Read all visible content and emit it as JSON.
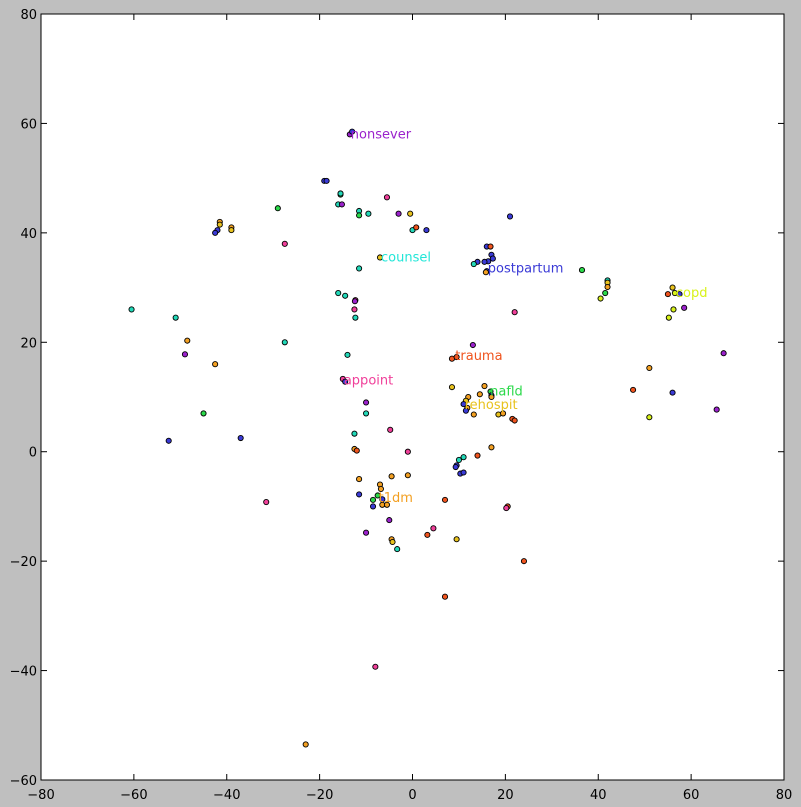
{
  "chart_data": {
    "type": "scatter",
    "title": "",
    "xlabel": "",
    "ylabel": "",
    "xlim": [
      -80,
      80
    ],
    "ylim": [
      -60,
      80
    ],
    "grid": false,
    "x_ticks": [
      "−80",
      "−60",
      "−40",
      "−20",
      "0",
      "20",
      "40",
      "60",
      "80"
    ],
    "y_ticks": [
      "−60",
      "−40",
      "−20",
      "0",
      "20",
      "40",
      "60",
      "80"
    ],
    "annotations": [
      {
        "text": "nonsever",
        "x": -13.5,
        "y": 58,
        "color": "#9b22cc"
      },
      {
        "text": "counsel",
        "x": -7,
        "y": 35.5,
        "color": "#22e6d8"
      },
      {
        "text": "postpartum",
        "x": 16,
        "y": 33.5,
        "color": "#3a3ad6"
      },
      {
        "text": "copd",
        "x": 56.5,
        "y": 29,
        "color": "#d8f21a"
      },
      {
        "text": "trauma",
        "x": 9,
        "y": 17.5,
        "color": "#f0541e"
      },
      {
        "text": "appoint",
        "x": -15,
        "y": 13,
        "color": "#f0409a"
      },
      {
        "text": "nafld",
        "x": 16.5,
        "y": 11,
        "color": "#2bd94a"
      },
      {
        "text": "rehospit",
        "x": 11,
        "y": 8.5,
        "color": "#e8c21e"
      },
      {
        "text": "t1dm",
        "x": -7.5,
        "y": -8.5,
        "color": "#f3a022"
      }
    ],
    "points": [
      {
        "x": -13.5,
        "y": 58,
        "color": "#9b22cc"
      },
      {
        "x": -13,
        "y": 58.5,
        "color": "#3a3ad6"
      },
      {
        "x": -19,
        "y": 49.5,
        "color": "#3a3ad6"
      },
      {
        "x": -18.5,
        "y": 49.5,
        "color": "#3a3ad6"
      },
      {
        "x": -15.5,
        "y": 47,
        "color": "#2bd94a"
      },
      {
        "x": -15.5,
        "y": 47.2,
        "color": "#22d8b8"
      },
      {
        "x": -16,
        "y": 45.2,
        "color": "#22d8b8"
      },
      {
        "x": -15.2,
        "y": 45.2,
        "color": "#9b22cc"
      },
      {
        "x": -5.5,
        "y": 46.5,
        "color": "#f0409a"
      },
      {
        "x": -29,
        "y": 44.5,
        "color": "#2bd94a"
      },
      {
        "x": -41.5,
        "y": 42,
        "color": "#f3a022"
      },
      {
        "x": -41.5,
        "y": 41.5,
        "color": "#e8c21e"
      },
      {
        "x": -42,
        "y": 40.5,
        "color": "#3a3ad6"
      },
      {
        "x": -42.5,
        "y": 40,
        "color": "#3a3ad6"
      },
      {
        "x": -39,
        "y": 41,
        "color": "#f3a022"
      },
      {
        "x": -39,
        "y": 40.5,
        "color": "#e8c21e"
      },
      {
        "x": -11.5,
        "y": 44,
        "color": "#22d8b8"
      },
      {
        "x": -11.5,
        "y": 43.2,
        "color": "#2bd94a"
      },
      {
        "x": -9.5,
        "y": 43.5,
        "color": "#22d8b8"
      },
      {
        "x": -3,
        "y": 43.5,
        "color": "#9b22cc"
      },
      {
        "x": -0.5,
        "y": 43.5,
        "color": "#e8c21e"
      },
      {
        "x": 0,
        "y": 40.5,
        "color": "#22d8b8"
      },
      {
        "x": 0.8,
        "y": 41,
        "color": "#f0541e"
      },
      {
        "x": 3,
        "y": 40.5,
        "color": "#3a3ad6"
      },
      {
        "x": -27.5,
        "y": 38,
        "color": "#f0409a"
      },
      {
        "x": -7,
        "y": 35.5,
        "color": "#e8c21e"
      },
      {
        "x": -11.5,
        "y": 33.5,
        "color": "#22d8b8"
      },
      {
        "x": 21,
        "y": 43,
        "color": "#3a3ad6"
      },
      {
        "x": 16,
        "y": 37.5,
        "color": "#3a3ad6"
      },
      {
        "x": 16.8,
        "y": 37.5,
        "color": "#f0541e"
      },
      {
        "x": 17,
        "y": 36,
        "color": "#3a3ad6"
      },
      {
        "x": 17.3,
        "y": 35.3,
        "color": "#3a3ad6"
      },
      {
        "x": 16.3,
        "y": 34.8,
        "color": "#3a3ad6"
      },
      {
        "x": 15.5,
        "y": 34.7,
        "color": "#3a3ad6"
      },
      {
        "x": 14,
        "y": 34.7,
        "color": "#3a3ad6"
      },
      {
        "x": 13.2,
        "y": 34.3,
        "color": "#22d8b8"
      },
      {
        "x": 16,
        "y": 33,
        "color": "#3a3ad6"
      },
      {
        "x": 15.8,
        "y": 32.8,
        "color": "#f3a022"
      },
      {
        "x": 36.5,
        "y": 33.2,
        "color": "#2bd94a"
      },
      {
        "x": 42,
        "y": 31.3,
        "color": "#22d8b8"
      },
      {
        "x": 42,
        "y": 30.9,
        "color": "#e8c21e"
      },
      {
        "x": 42,
        "y": 30.1,
        "color": "#f3a022"
      },
      {
        "x": 41.5,
        "y": 29,
        "color": "#2bd94a"
      },
      {
        "x": 40.5,
        "y": 28,
        "color": "#d8f21a"
      },
      {
        "x": 55,
        "y": 28.8,
        "color": "#f0541e"
      },
      {
        "x": 56,
        "y": 30,
        "color": "#e8c21e"
      },
      {
        "x": 56.5,
        "y": 29,
        "color": "#d8f21a"
      },
      {
        "x": 57.5,
        "y": 28.8,
        "color": "#3a3ad6"
      },
      {
        "x": 56.2,
        "y": 26,
        "color": "#d8f21a"
      },
      {
        "x": 55.2,
        "y": 24.5,
        "color": "#d8f21a"
      },
      {
        "x": 58.5,
        "y": 26.3,
        "color": "#9b22cc"
      },
      {
        "x": 22,
        "y": 25.5,
        "color": "#f0409a"
      },
      {
        "x": -60.5,
        "y": 26,
        "color": "#22d8b8"
      },
      {
        "x": -51,
        "y": 24.5,
        "color": "#22d8b8"
      },
      {
        "x": -48.5,
        "y": 20.3,
        "color": "#f3a022"
      },
      {
        "x": -49,
        "y": 17.8,
        "color": "#9b22cc"
      },
      {
        "x": -42.5,
        "y": 16,
        "color": "#f3a022"
      },
      {
        "x": -27.5,
        "y": 20,
        "color": "#22d8b8"
      },
      {
        "x": -16,
        "y": 29,
        "color": "#22d8b8"
      },
      {
        "x": -14.5,
        "y": 28.5,
        "color": "#22d8b8"
      },
      {
        "x": -12.3,
        "y": 27.7,
        "color": "#f0409a"
      },
      {
        "x": -12.4,
        "y": 27.5,
        "color": "#9b22cc"
      },
      {
        "x": -12.5,
        "y": 26,
        "color": "#f0409a"
      },
      {
        "x": -12.3,
        "y": 24.5,
        "color": "#22d8b8"
      },
      {
        "x": -14,
        "y": 17.7,
        "color": "#22d8b8"
      },
      {
        "x": -15,
        "y": 13.3,
        "color": "#f0409a"
      },
      {
        "x": -14.5,
        "y": 12.8,
        "color": "#3a3ad6"
      },
      {
        "x": -10,
        "y": 9,
        "color": "#9b22cc"
      },
      {
        "x": -10,
        "y": 7,
        "color": "#22d8b8"
      },
      {
        "x": -12.5,
        "y": 3.3,
        "color": "#22d8b8"
      },
      {
        "x": -12.5,
        "y": 0.5,
        "color": "#f3a022"
      },
      {
        "x": -12,
        "y": 0.2,
        "color": "#f0541e"
      },
      {
        "x": -4.8,
        "y": 4,
        "color": "#f0409a"
      },
      {
        "x": -1,
        "y": 0,
        "color": "#f0409a"
      },
      {
        "x": -45,
        "y": 7,
        "color": "#2bd94a"
      },
      {
        "x": -52.5,
        "y": 2,
        "color": "#3a3ad6"
      },
      {
        "x": -37,
        "y": 2.5,
        "color": "#3a3ad6"
      },
      {
        "x": -31.5,
        "y": -9.2,
        "color": "#f0409a"
      },
      {
        "x": 13,
        "y": 19.5,
        "color": "#9b22cc"
      },
      {
        "x": 8.5,
        "y": 17,
        "color": "#f0541e"
      },
      {
        "x": 9.5,
        "y": 17.3,
        "color": "#f0541e"
      },
      {
        "x": 8.5,
        "y": 11.8,
        "color": "#e8c21e"
      },
      {
        "x": 15.5,
        "y": 12,
        "color": "#f3a022"
      },
      {
        "x": 14.5,
        "y": 10.5,
        "color": "#f3a022"
      },
      {
        "x": 16.8,
        "y": 11,
        "color": "#2bd94a"
      },
      {
        "x": 17,
        "y": 10.3,
        "color": "#3a3ad6"
      },
      {
        "x": 17,
        "y": 10,
        "color": "#f3a022"
      },
      {
        "x": 12,
        "y": 10,
        "color": "#f3a022"
      },
      {
        "x": 11.5,
        "y": 9.3,
        "color": "#e8c21e"
      },
      {
        "x": 11,
        "y": 8.7,
        "color": "#3a3ad6"
      },
      {
        "x": 11.8,
        "y": 8,
        "color": "#f3a022"
      },
      {
        "x": 11.5,
        "y": 7.5,
        "color": "#3a3ad6"
      },
      {
        "x": 13.2,
        "y": 6.8,
        "color": "#f3a022"
      },
      {
        "x": 18.5,
        "y": 6.8,
        "color": "#e8c21e"
      },
      {
        "x": 19.5,
        "y": 7,
        "color": "#f3a022"
      },
      {
        "x": 21.5,
        "y": 6,
        "color": "#f0541e"
      },
      {
        "x": 22,
        "y": 5.7,
        "color": "#f0541e"
      },
      {
        "x": 17,
        "y": 0.8,
        "color": "#f3a022"
      },
      {
        "x": 14,
        "y": -0.7,
        "color": "#f0541e"
      },
      {
        "x": 11,
        "y": -1,
        "color": "#22d8b8"
      },
      {
        "x": 10,
        "y": -1.5,
        "color": "#22d8b8"
      },
      {
        "x": 9.5,
        "y": -2.5,
        "color": "#3a3ad6"
      },
      {
        "x": 9.3,
        "y": -2.8,
        "color": "#3a3ad6"
      },
      {
        "x": 10.3,
        "y": -4,
        "color": "#3a3ad6"
      },
      {
        "x": 11,
        "y": -3.8,
        "color": "#3a3ad6"
      },
      {
        "x": 47.5,
        "y": 11.3,
        "color": "#f0541e"
      },
      {
        "x": 51,
        "y": 15.3,
        "color": "#f3a022"
      },
      {
        "x": 56,
        "y": 10.8,
        "color": "#3a3ad6"
      },
      {
        "x": 51,
        "y": 6.3,
        "color": "#d8f21a"
      },
      {
        "x": 65.5,
        "y": 7.7,
        "color": "#9b22cc"
      },
      {
        "x": 67,
        "y": 18,
        "color": "#9b22cc"
      },
      {
        "x": -11.5,
        "y": -5,
        "color": "#f3a022"
      },
      {
        "x": -11.5,
        "y": -7.8,
        "color": "#3a3ad6"
      },
      {
        "x": -7,
        "y": -6,
        "color": "#f3a022"
      },
      {
        "x": -6.8,
        "y": -6.8,
        "color": "#f3a022"
      },
      {
        "x": -7.5,
        "y": -8,
        "color": "#2bd94a"
      },
      {
        "x": -8.5,
        "y": -8.8,
        "color": "#2bd94a"
      },
      {
        "x": -6.5,
        "y": -8.7,
        "color": "#3a3ad6"
      },
      {
        "x": -6.5,
        "y": -9.7,
        "color": "#f3a022"
      },
      {
        "x": -5.5,
        "y": -9.7,
        "color": "#f3a022"
      },
      {
        "x": -8.5,
        "y": -10,
        "color": "#3a3ad6"
      },
      {
        "x": -4.5,
        "y": -4.5,
        "color": "#f3a022"
      },
      {
        "x": -1,
        "y": -4.3,
        "color": "#f3a022"
      },
      {
        "x": -5,
        "y": -12.5,
        "color": "#9b22cc"
      },
      {
        "x": -10,
        "y": -14.8,
        "color": "#9b22cc"
      },
      {
        "x": -4.5,
        "y": -16,
        "color": "#f3a022"
      },
      {
        "x": -4.3,
        "y": -16.5,
        "color": "#e8c21e"
      },
      {
        "x": -3.3,
        "y": -17.8,
        "color": "#22d8b8"
      },
      {
        "x": 4.5,
        "y": -14,
        "color": "#f0409a"
      },
      {
        "x": 3.2,
        "y": -15.2,
        "color": "#f0541e"
      },
      {
        "x": 7,
        "y": -8.8,
        "color": "#f0541e"
      },
      {
        "x": 9.5,
        "y": -16,
        "color": "#e8c21e"
      },
      {
        "x": 20.5,
        "y": -10,
        "color": "#f0541e"
      },
      {
        "x": 20.2,
        "y": -10.3,
        "color": "#f0409a"
      },
      {
        "x": 24,
        "y": -20,
        "color": "#f0541e"
      },
      {
        "x": 7,
        "y": -26.5,
        "color": "#f0541e"
      },
      {
        "x": -8,
        "y": -39.3,
        "color": "#f0409a"
      },
      {
        "x": -23,
        "y": -53.5,
        "color": "#f3a022"
      }
    ]
  }
}
